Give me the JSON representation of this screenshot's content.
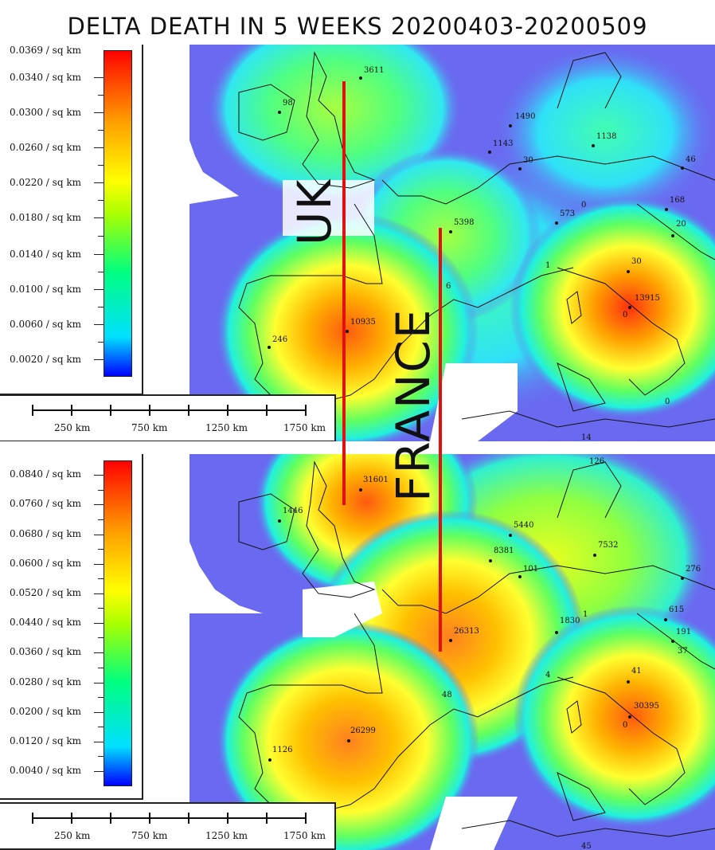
{
  "title": "DELTA DEATH IN 5 WEEKS 20200403-20200509",
  "annotations": {
    "uk_label": "UK",
    "france_label": "FRANCE",
    "line_color": "#e41010"
  },
  "panel1": {
    "legend": {
      "labels": [
        "0.0369 / sq km",
        "0.0340 / sq km",
        "0.0300 / sq km",
        "0.0260 / sq km",
        "0.0220 / sq km",
        "0.0180 / sq km",
        "0.0140 / sq km",
        "0.0100 / sq km",
        "0.0060 / sq km",
        "0.0020 / sq km"
      ]
    },
    "scale": {
      "labels": [
        "250 km",
        "750 km",
        "1250 km",
        "1750 km"
      ]
    },
    "values": [
      "3611",
      "98",
      "1490",
      "1143",
      "30",
      "1138",
      "46",
      "168",
      "20",
      "573",
      "0",
      "5398",
      "30",
      "13915",
      "0",
      "10935",
      "246",
      "1",
      "6",
      "0",
      "14"
    ]
  },
  "panel2": {
    "legend": {
      "labels": [
        "0.0840 / sq km",
        "0.0760 / sq km",
        "0.0680 / sq km",
        "0.0600 / sq km",
        "0.0520 / sq km",
        "0.0440 / sq km",
        "0.0360 / sq km",
        "0.0280 / sq km",
        "0.0200 / sq km",
        "0.0120 / sq km",
        "0.0040 / sq km"
      ]
    },
    "scale": {
      "labels": [
        "250 km",
        "750 km",
        "1250 km",
        "1750 km"
      ]
    },
    "values": [
      "31601",
      "1446",
      "5440",
      "8381",
      "101",
      "7532",
      "276",
      "615",
      "1830",
      "1",
      "191",
      "37",
      "26313",
      "41",
      "30395",
      "0",
      "48",
      "26299",
      "1126",
      "4",
      "45",
      "126"
    ]
  }
}
